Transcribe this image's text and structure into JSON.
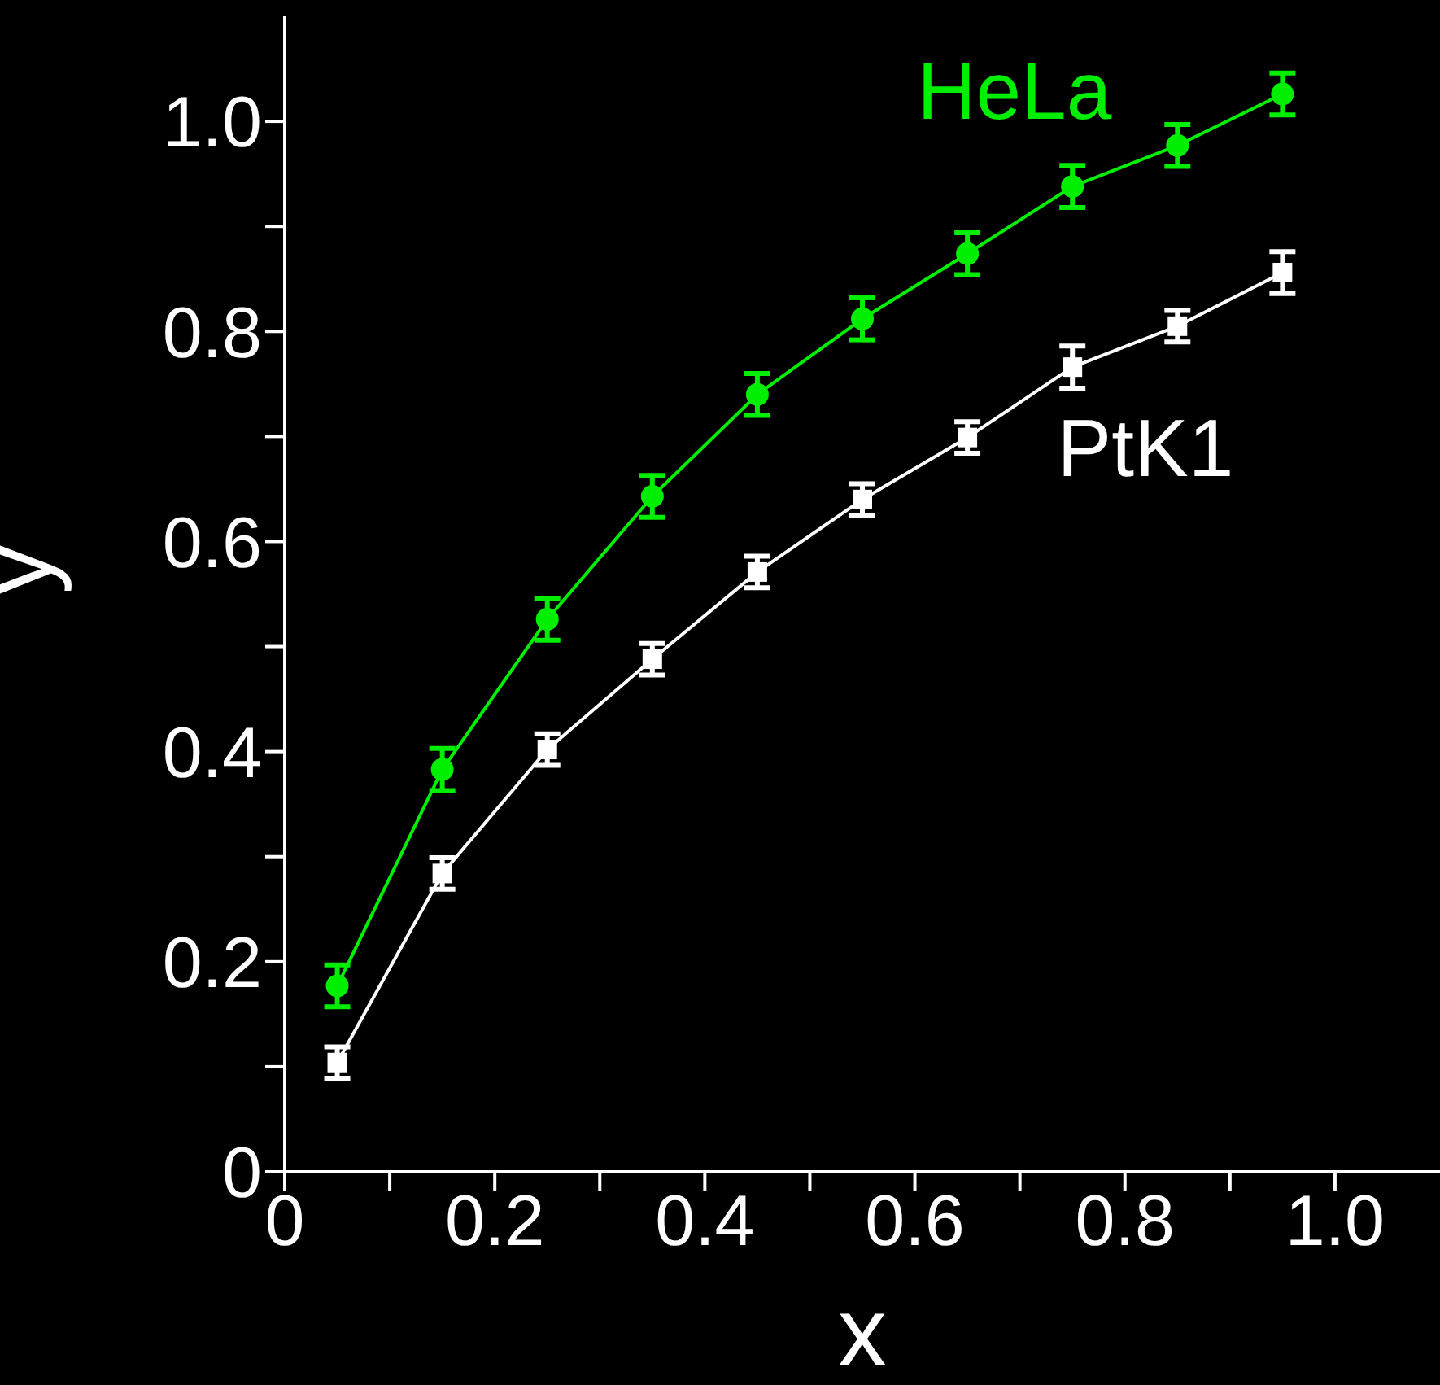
{
  "chart_data": {
    "type": "line",
    "xlabel": "x",
    "ylabel": "y",
    "x": [
      0.05,
      0.15,
      0.25,
      0.35,
      0.45,
      0.55,
      0.65,
      0.75,
      0.85,
      0.95
    ],
    "series": [
      {
        "name": "HeLa",
        "color": "#00ee00",
        "marker": "circle",
        "values": [
          0.177,
          0.383,
          0.526,
          0.643,
          0.74,
          0.812,
          0.874,
          0.938,
          0.977,
          1.026
        ],
        "errors": [
          0.02,
          0.02,
          0.02,
          0.02,
          0.02,
          0.02,
          0.02,
          0.02,
          0.02,
          0.02
        ]
      },
      {
        "name": "PtK1",
        "color": "#ffffff",
        "marker": "square",
        "values": [
          0.104,
          0.284,
          0.402,
          0.488,
          0.571,
          0.64,
          0.699,
          0.766,
          0.805,
          0.856
        ],
        "errors": [
          0.015,
          0.015,
          0.015,
          0.015,
          0.015,
          0.015,
          0.015,
          0.02,
          0.015,
          0.02
        ]
      }
    ],
    "xlim": [
      0,
      1.1
    ],
    "ylim": [
      0,
      1.1
    ],
    "xticks": [
      0,
      {
        "value": 0.1,
        "label": null
      },
      0.2,
      {
        "value": 0.3,
        "label": null
      },
      0.4,
      {
        "value": 0.5,
        "label": null
      },
      0.6,
      {
        "value": 0.7,
        "label": null
      },
      0.8,
      {
        "value": 0.9,
        "label": null
      },
      {
        "value": 1.0,
        "label": "1.0"
      }
    ],
    "yticks": [
      {
        "value": 0,
        "label": "0"
      },
      {
        "value": 0.1,
        "label": null
      },
      {
        "value": 0.2,
        "label": "0.2"
      },
      {
        "value": 0.3,
        "label": null
      },
      {
        "value": 0.4,
        "label": "0.4"
      },
      {
        "value": 0.5,
        "label": null
      },
      {
        "value": 0.6,
        "label": "0.6"
      },
      {
        "value": 0.7,
        "label": null
      },
      {
        "value": 0.8,
        "label": "0.8"
      },
      {
        "value": 0.9,
        "label": null
      },
      {
        "value": 1.0,
        "label": "1.0"
      }
    ],
    "grid": false,
    "legend": false
  }
}
